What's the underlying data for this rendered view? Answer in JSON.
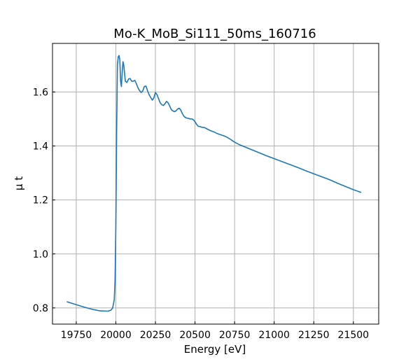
{
  "chart_data": {
    "type": "line",
    "title": "Mo-K_MoB_Si111_50ms_160716",
    "xlabel": "Energy [eV]",
    "ylabel": "μ t",
    "xlim": [
      19600,
      21660
    ],
    "ylim": [
      0.74,
      1.78
    ],
    "xticks": [
      19750,
      20000,
      20250,
      20500,
      20750,
      21000,
      21250,
      21500
    ],
    "yticks": [
      0.8,
      1.0,
      1.2,
      1.4,
      1.6
    ],
    "ytick_labels": [
      "0.8",
      "1.0",
      "1.2",
      "1.4",
      "1.6"
    ],
    "grid": true,
    "line_color": "#1f77b4",
    "series": [
      {
        "x": [
          19690,
          19750,
          19800,
          19850,
          19900,
          19950,
          19970,
          19980,
          19990,
          19995,
          20000,
          20005,
          20010,
          20015,
          20020,
          20025,
          20030,
          20035,
          20040,
          20045,
          20050,
          20055,
          20060,
          20070,
          20080,
          20090,
          20100,
          20110,
          20120,
          20130,
          20140,
          20150,
          20160,
          20170,
          20180,
          20190,
          20200,
          20210,
          20220,
          20230,
          20240,
          20250,
          20260,
          20270,
          20280,
          20290,
          20300,
          20310,
          20320,
          20330,
          20340,
          20350,
          20360,
          20370,
          20380,
          20390,
          20400,
          20410,
          20420,
          20430,
          20440,
          20450,
          20460,
          20470,
          20480,
          20490,
          20500,
          20510,
          20520,
          20530,
          20540,
          20560,
          20580,
          20600,
          20620,
          20640,
          20660,
          20680,
          20700,
          20720,
          20740,
          20760,
          20780,
          20800,
          20850,
          20900,
          20950,
          21000,
          21050,
          21100,
          21150,
          21200,
          21250,
          21300,
          21350,
          21400,
          21450,
          21500,
          21550
        ],
        "y": [
          0.823,
          0.812,
          0.803,
          0.795,
          0.789,
          0.788,
          0.792,
          0.8,
          0.83,
          0.9,
          1.1,
          1.45,
          1.7,
          1.73,
          1.735,
          1.72,
          1.64,
          1.62,
          1.67,
          1.712,
          1.7,
          1.67,
          1.64,
          1.635,
          1.648,
          1.65,
          1.64,
          1.64,
          1.643,
          1.63,
          1.615,
          1.605,
          1.598,
          1.604,
          1.62,
          1.622,
          1.605,
          1.59,
          1.58,
          1.57,
          1.578,
          1.598,
          1.59,
          1.575,
          1.56,
          1.553,
          1.55,
          1.556,
          1.565,
          1.56,
          1.548,
          1.535,
          1.53,
          1.527,
          1.53,
          1.537,
          1.54,
          1.533,
          1.52,
          1.51,
          1.505,
          1.503,
          1.502,
          1.5,
          1.5,
          1.497,
          1.49,
          1.48,
          1.473,
          1.472,
          1.47,
          1.468,
          1.462,
          1.456,
          1.452,
          1.446,
          1.442,
          1.438,
          1.433,
          1.426,
          1.418,
          1.411,
          1.405,
          1.4,
          1.388,
          1.376,
          1.364,
          1.353,
          1.342,
          1.331,
          1.32,
          1.308,
          1.297,
          1.286,
          1.275,
          1.262,
          1.25,
          1.238,
          1.228
        ]
      }
    ]
  }
}
